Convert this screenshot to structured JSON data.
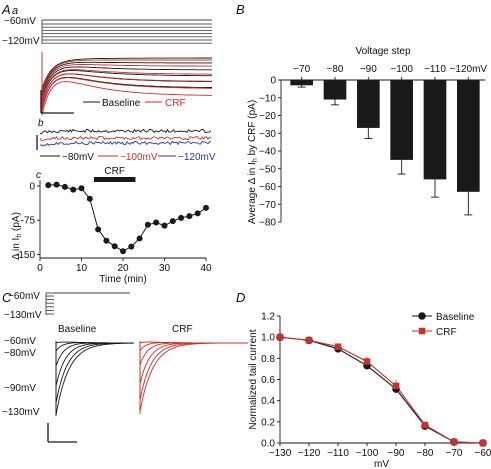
{
  "colors": {
    "black": "#1a1a1a",
    "red": "#c8322d",
    "blue": "#2b3a8f",
    "bar": "#1a1a1a",
    "grid": "#999999"
  },
  "panelA": {
    "label": "A",
    "sublabel_a": "a",
    "sublabel_b": "b",
    "sublabel_c": "c",
    "protocol_labels": [
      "−60mV",
      "−120mV"
    ],
    "legend": [
      "Baseline",
      "CRF"
    ],
    "b_legend": [
      "−80mV",
      "−100mV",
      "−120mV"
    ],
    "c_drug": "CRF"
  },
  "panelC": {
    "label": "C",
    "protocol_labels": [
      "−60mV",
      "−130mV"
    ],
    "baseline_title": "Baseline",
    "crf_title": "CRF",
    "voltage_labels": [
      "−60mV",
      "−80mV",
      "−90mV",
      "−130mV"
    ]
  },
  "chart_data": [
    {
      "id": "A-c",
      "type": "scatter",
      "x": [
        2,
        4,
        6,
        8,
        10,
        12,
        14,
        16,
        18,
        20,
        22,
        24,
        26,
        28,
        30,
        32,
        34,
        36,
        38,
        40
      ],
      "y": [
        2,
        3,
        -2,
        -8,
        -5,
        -28,
        -95,
        -120,
        -132,
        -143,
        -133,
        -115,
        -85,
        -80,
        -87,
        -77,
        -70,
        -66,
        -60,
        -48
      ],
      "xlabel": "Time (min)",
      "ylabel": "Δ in Ih (pA)",
      "xticks": [
        0,
        10,
        20,
        30,
        40
      ],
      "yticks": [
        0,
        -75,
        -150
      ],
      "xlim": [
        0,
        40
      ],
      "ylim": [
        -150,
        10
      ],
      "annotation": {
        "text": "CRF",
        "x_start": 13,
        "x_end": 23
      }
    },
    {
      "id": "B",
      "type": "bar",
      "title": "Voltage step",
      "categories": [
        "−70",
        "−80",
        "−90",
        "−100",
        "−110",
        "−120mV"
      ],
      "values": [
        -3,
        -11,
        -27,
        -45,
        -56,
        -63
      ],
      "errors": [
        1,
        3,
        6,
        8,
        10,
        13
      ],
      "ylabel": "Average Δ in Ih by CRF (pA)",
      "yticks": [
        0,
        -10,
        -20,
        -30,
        -40,
        -50,
        -60,
        -70,
        -80
      ],
      "ylim": [
        -80,
        5
      ]
    },
    {
      "id": "D",
      "type": "line",
      "x": [
        -130,
        -120,
        -110,
        -100,
        -90,
        -80,
        -70,
        -60
      ],
      "series": [
        {
          "name": "Baseline",
          "values": [
            1.0,
            0.97,
            0.89,
            0.73,
            0.51,
            0.16,
            0.01,
            0.0
          ]
        },
        {
          "name": "CRF",
          "values": [
            1.0,
            0.97,
            0.91,
            0.77,
            0.54,
            0.17,
            0.01,
            0.0
          ]
        }
      ],
      "xlabel": "mV",
      "ylabel": "Normalized tail current",
      "xticks": [
        -130,
        -120,
        -110,
        -100,
        -90,
        -80,
        -70,
        -60
      ],
      "yticks": [
        0.0,
        0.2,
        0.4,
        0.6,
        0.8,
        1.0,
        1.2
      ],
      "xlim": [
        -130,
        -60
      ],
      "ylim": [
        0,
        1.2
      ],
      "legend_position": "top-right"
    }
  ],
  "axis_text": {
    "A_c_ylabel_main": "Δ in I",
    "A_c_ylabel_sub": "h",
    "A_c_ylabel_end": " (pA)",
    "B_ylabel_main": "Average Δ in I",
    "B_ylabel_sub": "h",
    "B_ylabel_end": " by CRF (pA)",
    "B_label": "B",
    "D_label": "D"
  }
}
